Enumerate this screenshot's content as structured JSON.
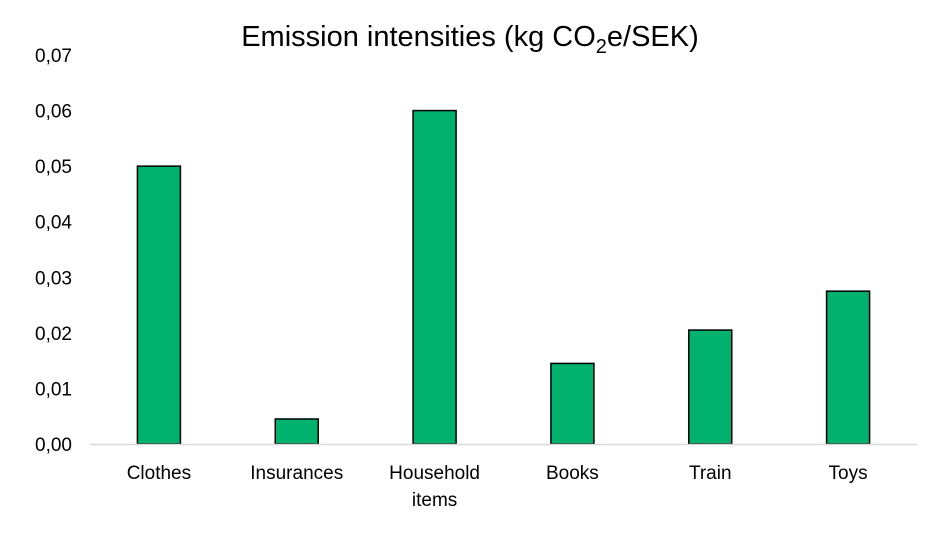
{
  "chart_data": {
    "type": "bar",
    "title": "Emission intensities (kg CO2e/SEK)",
    "title_parts": {
      "main": "Emission intensities (kg CO",
      "subscript": "2",
      "tail": "e/SEK)"
    },
    "xlabel": "",
    "ylabel": "",
    "categories": [
      [
        "Clothes"
      ],
      [
        "Insurances"
      ],
      [
        "Household",
        "items"
      ],
      [
        "Books"
      ],
      [
        "Train"
      ],
      [
        "Toys"
      ]
    ],
    "values": [
      0.05,
      0.0045,
      0.06,
      0.0145,
      0.0205,
      0.0275
    ],
    "ylim": [
      0,
      0.07
    ],
    "yticks": [
      "0,00",
      "0,01",
      "0,02",
      "0,03",
      "0,04",
      "0,05",
      "0,06",
      "0,07"
    ],
    "ytick_values": [
      0,
      0.01,
      0.02,
      0.03,
      0.04,
      0.05,
      0.06,
      0.07
    ],
    "grid": false,
    "legend": "none",
    "colors": {
      "bar_fill": "#00B26E",
      "bar_stroke": "#000000",
      "axis": "#D9D9D9"
    }
  }
}
